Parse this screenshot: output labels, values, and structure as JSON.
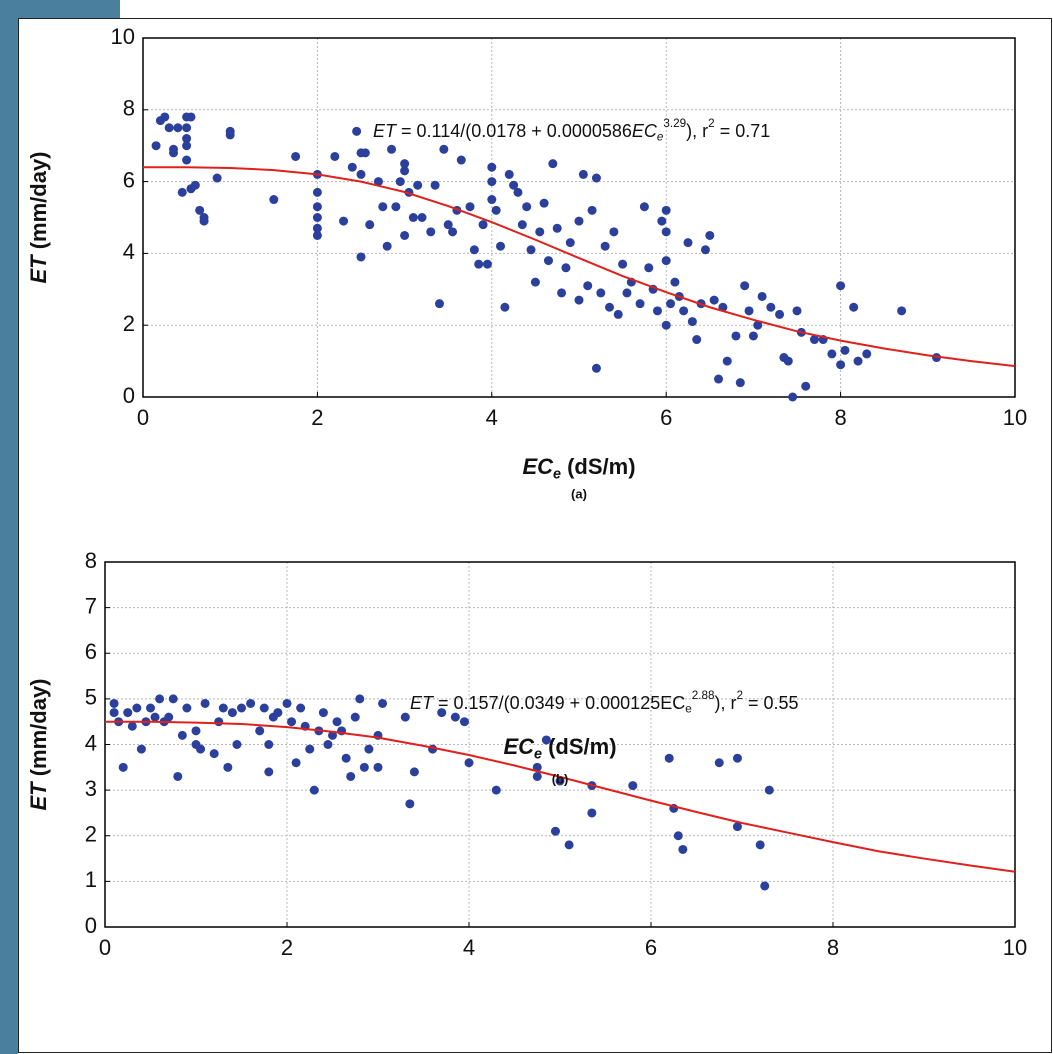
{
  "chart_data": [
    {
      "type": "scatter",
      "annotation_parts": [
        {
          "text": "ET",
          "style": "italic"
        },
        {
          "text": " = 0.114/(0.0178 + 0.0000586",
          "style": "normal"
        },
        {
          "text": "EC",
          "style": "italic"
        },
        {
          "text": "e",
          "style": "sub-italic"
        },
        {
          "text": "3.29",
          "style": "sup"
        },
        {
          "text": "), r",
          "style": "normal"
        },
        {
          "text": "2",
          "style": "sup"
        },
        {
          "text": " = 0.71",
          "style": "normal"
        }
      ],
      "ylabel_parts": [
        {
          "text": "ET",
          "style": "italic"
        },
        {
          "text": " (mm/day)",
          "style": "normal"
        }
      ],
      "xlabel_parts": [
        {
          "text": "EC",
          "style": "italic"
        },
        {
          "text": "e",
          "style": "sub-italic"
        },
        {
          "text": " (dS/m)",
          "style": "normal"
        }
      ],
      "panel_label": "(a)",
      "xlim": [
        0,
        10
      ],
      "xticks": [
        0,
        2,
        4,
        6,
        8,
        10
      ],
      "ylim": [
        0,
        10
      ],
      "yticks": [
        0,
        2,
        4,
        6,
        8,
        10
      ],
      "grid": true,
      "color": "#2b3f9c",
      "x": [
        0.15,
        0.2,
        0.25,
        0.3,
        0.35,
        0.35,
        0.4,
        0.45,
        0.5,
        0.5,
        0.5,
        0.5,
        0.5,
        0.55,
        0.55,
        0.6,
        0.65,
        0.7,
        0.7,
        0.85,
        1.0,
        1.0,
        1.5,
        1.75,
        2.0,
        2.0,
        2.0,
        2.0,
        2.0,
        2.0,
        2.2,
        2.3,
        2.4,
        2.45,
        2.5,
        2.5,
        2.5,
        2.55,
        2.6,
        2.7,
        2.75,
        2.8,
        2.85,
        2.9,
        2.95,
        3.0,
        3.0,
        3.0,
        3.05,
        3.1,
        3.15,
        3.2,
        3.3,
        3.35,
        3.4,
        3.45,
        3.5,
        3.55,
        3.6,
        3.65,
        3.75,
        3.8,
        3.85,
        3.9,
        3.95,
        4.0,
        4.0,
        4.0,
        4.05,
        4.1,
        4.15,
        4.2,
        4.25,
        4.3,
        4.35,
        4.4,
        4.45,
        4.5,
        4.55,
        4.6,
        4.65,
        4.7,
        4.75,
        4.8,
        4.85,
        4.9,
        5.0,
        5.0,
        5.05,
        5.1,
        5.15,
        5.2,
        5.2,
        5.25,
        5.3,
        5.35,
        5.4,
        5.45,
        5.5,
        5.55,
        5.6,
        5.7,
        5.75,
        5.8,
        5.85,
        5.9,
        5.95,
        6.0,
        6.0,
        6.0,
        6.0,
        6.05,
        6.1,
        6.15,
        6.2,
        6.25,
        6.3,
        6.35,
        6.4,
        6.45,
        6.5,
        6.55,
        6.6,
        6.65,
        6.7,
        6.8,
        6.85,
        6.9,
        6.95,
        7.0,
        7.05,
        7.1,
        7.2,
        7.3,
        7.35,
        7.4,
        7.45,
        7.5,
        7.55,
        7.6,
        7.7,
        7.8,
        7.9,
        8.0,
        8.0,
        8.05,
        8.15,
        8.2,
        8.3,
        8.7,
        9.1
      ],
      "values": [
        7.0,
        7.7,
        7.8,
        7.5,
        6.9,
        6.8,
        7.5,
        5.7,
        7.8,
        7.5,
        7.2,
        6.6,
        7.0,
        5.8,
        7.8,
        5.9,
        5.2,
        5.0,
        4.9,
        6.1,
        7.3,
        7.4,
        5.5,
        6.7,
        6.2,
        5.7,
        5.3,
        5.0,
        4.7,
        4.5,
        6.7,
        4.9,
        6.4,
        7.4,
        6.8,
        6.2,
        3.9,
        6.8,
        4.8,
        6.0,
        5.3,
        4.2,
        6.9,
        5.3,
        6.0,
        6.5,
        6.3,
        4.5,
        5.7,
        5.0,
        5.9,
        5.0,
        4.6,
        5.9,
        2.6,
        6.9,
        4.8,
        4.6,
        5.2,
        6.6,
        5.3,
        4.1,
        3.7,
        4.8,
        3.7,
        6.4,
        6.0,
        5.5,
        5.2,
        4.2,
        2.5,
        6.2,
        5.9,
        5.7,
        4.8,
        5.3,
        4.1,
        3.2,
        4.6,
        5.4,
        3.8,
        6.5,
        4.7,
        2.9,
        3.6,
        4.3,
        4.9,
        2.7,
        6.2,
        3.1,
        5.2,
        6.1,
        0.8,
        2.9,
        4.2,
        2.5,
        4.6,
        2.3,
        3.7,
        2.9,
        3.2,
        2.6,
        5.3,
        3.6,
        3.0,
        2.4,
        4.9,
        5.2,
        4.6,
        3.8,
        2.0,
        2.6,
        3.2,
        2.8,
        2.4,
        4.3,
        2.1,
        1.6,
        2.6,
        4.1,
        4.5,
        2.7,
        0.5,
        2.5,
        1.0,
        1.7,
        0.4,
        3.1,
        2.4,
        1.7,
        2.0,
        2.8,
        2.5,
        2.3,
        1.1,
        1.0,
        0.0,
        2.4,
        1.8,
        0.3,
        1.6,
        1.6,
        1.2,
        3.1,
        0.9,
        1.3,
        2.5,
        1.0,
        1.2,
        2.4,
        1.1
      ],
      "fit": {
        "color": "#e0201c",
        "x": [
          0,
          0.5,
          1,
          1.5,
          2,
          2.5,
          3,
          3.5,
          4,
          4.5,
          5,
          5.5,
          6,
          6.5,
          7,
          7.5,
          8,
          8.5,
          9,
          9.5,
          10
        ],
        "values": [
          6.4,
          6.4,
          6.38,
          6.32,
          6.2,
          6.0,
          5.71,
          5.32,
          4.87,
          4.38,
          3.87,
          3.37,
          2.92,
          2.5,
          2.15,
          1.83,
          1.57,
          1.35,
          1.16,
          1.0,
          0.86
        ]
      }
    },
    {
      "type": "scatter",
      "annotation_parts": [
        {
          "text": "ET",
          "style": "italic"
        },
        {
          "text": " = 0.157/(0.0349 + 0.000125EC",
          "style": "normal"
        },
        {
          "text": "e",
          "style": "sub"
        },
        {
          "text": "2.88",
          "style": "sup"
        },
        {
          "text": "), r",
          "style": "normal"
        },
        {
          "text": "2",
          "style": "sup"
        },
        {
          "text": " = 0.55",
          "style": "normal"
        }
      ],
      "ylabel_parts": [
        {
          "text": "ET",
          "style": "italic"
        },
        {
          "text": " (mm/day)",
          "style": "normal"
        }
      ],
      "xlabel_parts": [
        {
          "text": "EC",
          "style": "italic"
        },
        {
          "text": "e",
          "style": "sub-italic"
        },
        {
          "text": " (dS/m)",
          "style": "normal"
        }
      ],
      "panel_label": "(b)",
      "xlim": [
        0,
        10
      ],
      "xticks": [
        0,
        2,
        4,
        6,
        8,
        10
      ],
      "ylim": [
        0,
        8
      ],
      "yticks": [
        0,
        1,
        2,
        3,
        4,
        5,
        6,
        7,
        8
      ],
      "grid": true,
      "color": "#2b3f9c",
      "x": [
        0.1,
        0.1,
        0.15,
        0.2,
        0.25,
        0.3,
        0.35,
        0.4,
        0.45,
        0.5,
        0.55,
        0.6,
        0.65,
        0.7,
        0.75,
        0.8,
        0.85,
        0.9,
        1.0,
        1.0,
        1.05,
        1.1,
        1.2,
        1.25,
        1.3,
        1.35,
        1.4,
        1.45,
        1.5,
        1.6,
        1.7,
        1.75,
        1.8,
        1.8,
        1.85,
        1.9,
        2.0,
        2.05,
        2.1,
        2.15,
        2.2,
        2.25,
        2.3,
        2.35,
        2.4,
        2.45,
        2.5,
        2.55,
        2.6,
        2.65,
        2.7,
        2.75,
        2.8,
        2.85,
        2.9,
        3.0,
        3.0,
        3.05,
        3.3,
        3.35,
        3.4,
        3.6,
        3.7,
        3.85,
        3.95,
        4.0,
        4.3,
        4.75,
        4.75,
        4.85,
        4.95,
        5.0,
        5.1,
        5.35,
        5.35,
        5.8,
        6.2,
        6.25,
        6.3,
        6.35,
        6.75,
        6.95,
        6.95,
        7.2,
        7.25,
        7.3
      ],
      "values": [
        4.7,
        4.9,
        4.5,
        3.5,
        4.7,
        4.4,
        4.8,
        3.9,
        4.5,
        4.8,
        4.6,
        5.0,
        4.5,
        4.6,
        5.0,
        3.3,
        4.2,
        4.8,
        4.3,
        4.0,
        3.9,
        4.9,
        3.8,
        4.5,
        4.8,
        3.5,
        4.7,
        4.0,
        4.8,
        4.9,
        4.3,
        4.8,
        4.0,
        3.4,
        4.6,
        4.7,
        4.9,
        4.5,
        3.6,
        4.8,
        4.4,
        3.9,
        3.0,
        4.3,
        4.7,
        4.0,
        4.2,
        4.5,
        4.3,
        3.7,
        3.3,
        4.6,
        5.0,
        3.5,
        3.9,
        4.2,
        3.5,
        4.9,
        4.6,
        2.7,
        3.4,
        3.9,
        4.7,
        4.6,
        4.5,
        3.6,
        3.0,
        3.5,
        3.3,
        4.1,
        2.1,
        3.2,
        1.8,
        3.1,
        2.5,
        3.1,
        3.7,
        2.6,
        2.0,
        1.7,
        3.6,
        3.7,
        2.2,
        1.8,
        0.9,
        3.0
      ],
      "fit": {
        "color": "#e0201c",
        "x": [
          0,
          0.5,
          1,
          1.5,
          2,
          2.5,
          3,
          3.5,
          4,
          4.5,
          5,
          5.5,
          6,
          6.5,
          7,
          7.5,
          8,
          8.5,
          9,
          9.5,
          10
        ],
        "values": [
          4.5,
          4.5,
          4.48,
          4.45,
          4.38,
          4.28,
          4.15,
          3.97,
          3.77,
          3.54,
          3.29,
          3.03,
          2.77,
          2.52,
          2.28,
          2.07,
          1.86,
          1.66,
          1.5,
          1.35,
          1.21
        ]
      }
    }
  ]
}
